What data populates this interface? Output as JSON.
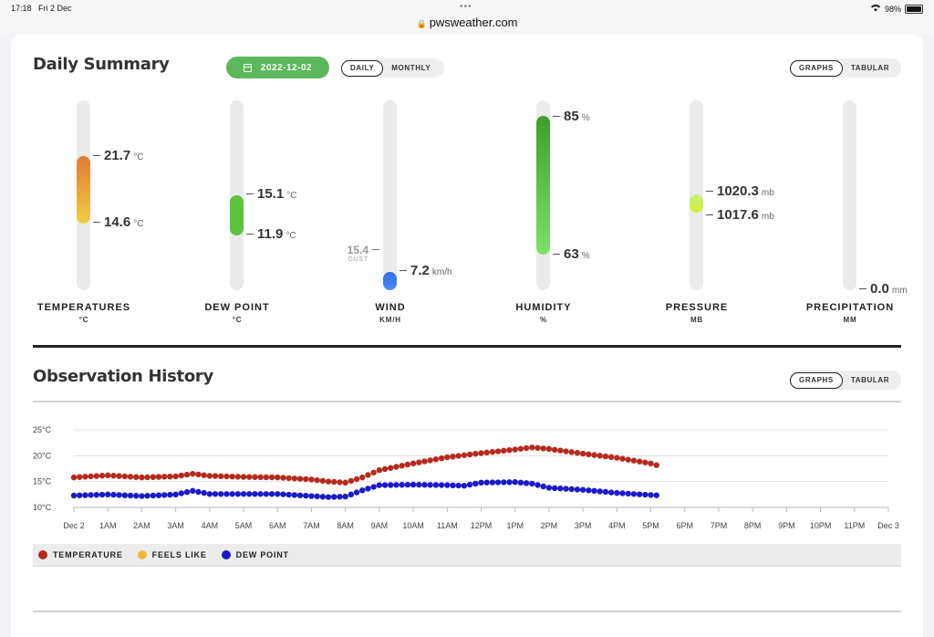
{
  "statusbar": {
    "time": "17:18",
    "date": "Fri 2 Dec",
    "url": "pwsweather.com",
    "battery": "98%",
    "battery_level": 0.98
  },
  "daily": {
    "title": "Daily Summary",
    "date_label": "2022-12-02",
    "period_toggle": [
      "DAILY",
      "MONTHLY"
    ],
    "period_active": "DAILY",
    "view_toggle": [
      "GRAPHS",
      "TABULAR"
    ],
    "view_active": "GRAPHS",
    "columns": [
      {
        "label": "TEMPERATURES",
        "unit_label": "°C",
        "high": "21.7",
        "low": "14.6",
        "unit": "°C",
        "colors": [
          "#e07b2e",
          "#f0cf45"
        ]
      },
      {
        "label": "DEW POINT",
        "unit_label": "°C",
        "high": "15.1",
        "low": "11.9",
        "unit": "°C",
        "colors": [
          "#5ac43c",
          "#5ac43c"
        ]
      },
      {
        "label": "WIND",
        "unit_label": "KM/H",
        "value": "7.2",
        "unit": "km/h",
        "gust": "15.4",
        "gust_label": "GUST",
        "colors": [
          "#2f6fe8",
          "#4a8ef5"
        ]
      },
      {
        "label": "HUMIDITY",
        "unit_label": "%",
        "high": "85",
        "low": "63",
        "unit": "%",
        "colors": [
          "#3e9e2c",
          "#7fe06a"
        ]
      },
      {
        "label": "PRESSURE",
        "unit_label": "MB",
        "high": "1020.3",
        "low": "1017.6",
        "unit": "mb",
        "colors": [
          "#c5f07a",
          "#d4ef3a"
        ]
      },
      {
        "label": "PRECIPITATION",
        "unit_label": "MM",
        "value": "0.0",
        "unit": "mm",
        "colors": [
          "#3aa0e0",
          "#3aa0e0"
        ]
      }
    ]
  },
  "history": {
    "title": "Observation History",
    "view_toggle": [
      "GRAPHS",
      "TABULAR"
    ],
    "view_active": "GRAPHS",
    "legend": [
      {
        "name": "TEMPERATURE",
        "color": "#b52a1e"
      },
      {
        "name": "FEELS LIKE",
        "color": "#f0b93a"
      },
      {
        "name": "DEW POINT",
        "color": "#1a1ac8"
      }
    ]
  },
  "chart_data": {
    "type": "scatter",
    "ylim": [
      10,
      25
    ],
    "y_ticks": [
      "25°C",
      "20°C",
      "15°C",
      "10°C"
    ],
    "y_tick_values": [
      25,
      20,
      15,
      10
    ],
    "x_ticks": [
      "Dec 2",
      "1AM",
      "2AM",
      "3AM",
      "4AM",
      "5AM",
      "6AM",
      "7AM",
      "8AM",
      "9AM",
      "10AM",
      "11AM",
      "12PM",
      "1PM",
      "2PM",
      "3PM",
      "4PM",
      "5PM",
      "6PM",
      "7PM",
      "8PM",
      "9PM",
      "10PM",
      "11PM",
      "Dec 3"
    ],
    "xlim_hours": [
      0,
      24
    ],
    "series": [
      {
        "name": "TEMPERATURE",
        "color": "#b52a1e",
        "hours": [
          0,
          1,
          2,
          3,
          3.5,
          4,
          5,
          6,
          7,
          7.5,
          8,
          8.5,
          9,
          10,
          11,
          12,
          13,
          13.5,
          14,
          15,
          16,
          17,
          17.3
        ],
        "values": [
          15.8,
          16.2,
          15.8,
          16.0,
          16.5,
          16.1,
          15.9,
          15.8,
          15.4,
          15.0,
          14.8,
          15.8,
          17.2,
          18.5,
          19.7,
          20.5,
          21.2,
          21.6,
          21.3,
          20.4,
          19.6,
          18.5,
          17.9
        ]
      },
      {
        "name": "DEW POINT",
        "color": "#1a1ac8",
        "hours": [
          0,
          1,
          2,
          3,
          3.5,
          4,
          5,
          6,
          7,
          7.5,
          8,
          8.5,
          9,
          10,
          11,
          11.5,
          12,
          13,
          13.5,
          14,
          15,
          16,
          17,
          17.3
        ],
        "values": [
          12.3,
          12.5,
          12.2,
          12.5,
          13.2,
          12.6,
          12.6,
          12.6,
          12.2,
          12.0,
          12.1,
          13.3,
          14.3,
          14.4,
          14.3,
          14.2,
          14.8,
          14.9,
          14.6,
          13.8,
          13.4,
          12.8,
          12.4,
          12.3
        ]
      }
    ]
  }
}
